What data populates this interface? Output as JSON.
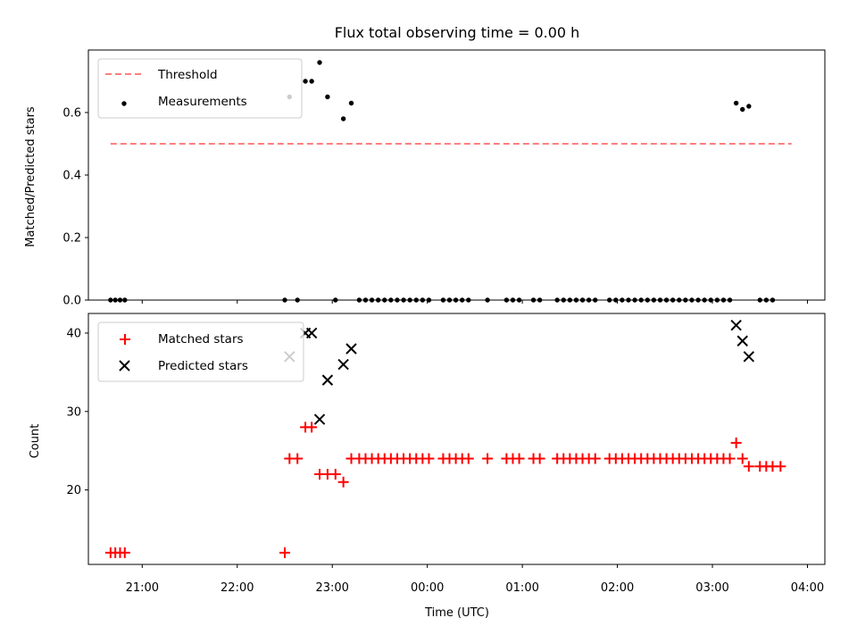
{
  "chart_data": [
    {
      "type": "scatter",
      "title": "Flux total observing time = 0.00 h",
      "xlabel": "",
      "ylabel": "Matched/Predicted stars",
      "xlim": [
        "20:26",
        "04:11"
      ],
      "ylim": [
        0,
        0.8
      ],
      "yticks": [
        {
          "value": 0.0,
          "label": "0.0"
        },
        {
          "value": 0.2,
          "label": "0.2"
        },
        {
          "value": 0.4,
          "label": "0.4"
        },
        {
          "value": 0.6,
          "label": "0.6"
        }
      ],
      "grid": false,
      "legend_position": "upper-left",
      "legend": [
        {
          "label": "Threshold",
          "marker": "dashed-line",
          "color": "#ff7f7f"
        },
        {
          "label": "Measurements",
          "marker": "dot",
          "color": "#000000"
        }
      ],
      "threshold": {
        "name": "Threshold",
        "value": 0.5,
        "x_range": [
          "20:40",
          "03:50"
        ],
        "color": "#ff7f7f",
        "style": "dashed"
      },
      "series": [
        {
          "name": "Measurements",
          "marker": "dot",
          "color": "#000000",
          "points": [
            {
              "x": "20:40",
              "y": 0
            },
            {
              "x": "20:43",
              "y": 0
            },
            {
              "x": "20:46",
              "y": 0
            },
            {
              "x": "20:49",
              "y": 0
            },
            {
              "x": "22:30",
              "y": 0
            },
            {
              "x": "22:33",
              "y": 0.65
            },
            {
              "x": "22:38",
              "y": 0
            },
            {
              "x": "22:43",
              "y": 0.7
            },
            {
              "x": "22:47",
              "y": 0.7
            },
            {
              "x": "22:52",
              "y": 0.76
            },
            {
              "x": "22:57",
              "y": 0.65
            },
            {
              "x": "23:02",
              "y": 0
            },
            {
              "x": "23:07",
              "y": 0.58
            },
            {
              "x": "23:12",
              "y": 0.63
            },
            {
              "x": "23:17",
              "y": 0
            },
            {
              "x": "23:21",
              "y": 0
            },
            {
              "x": "23:25",
              "y": 0
            },
            {
              "x": "23:29",
              "y": 0
            },
            {
              "x": "23:33",
              "y": 0
            },
            {
              "x": "23:37",
              "y": 0
            },
            {
              "x": "23:41",
              "y": 0
            },
            {
              "x": "23:45",
              "y": 0
            },
            {
              "x": "23:49",
              "y": 0
            },
            {
              "x": "23:53",
              "y": 0
            },
            {
              "x": "23:57",
              "y": 0
            },
            {
              "x": "00:01",
              "y": 0
            },
            {
              "x": "00:10",
              "y": 0
            },
            {
              "x": "00:14",
              "y": 0
            },
            {
              "x": "00:18",
              "y": 0
            },
            {
              "x": "00:22",
              "y": 0
            },
            {
              "x": "00:26",
              "y": 0
            },
            {
              "x": "00:38",
              "y": 0
            },
            {
              "x": "00:50",
              "y": 0
            },
            {
              "x": "00:54",
              "y": 0
            },
            {
              "x": "00:58",
              "y": 0
            },
            {
              "x": "01:07",
              "y": 0
            },
            {
              "x": "01:11",
              "y": 0
            },
            {
              "x": "01:22",
              "y": 0
            },
            {
              "x": "01:26",
              "y": 0
            },
            {
              "x": "01:30",
              "y": 0
            },
            {
              "x": "01:34",
              "y": 0
            },
            {
              "x": "01:38",
              "y": 0
            },
            {
              "x": "01:42",
              "y": 0
            },
            {
              "x": "01:46",
              "y": 0
            },
            {
              "x": "01:55",
              "y": 0
            },
            {
              "x": "01:59",
              "y": 0
            },
            {
              "x": "02:03",
              "y": 0
            },
            {
              "x": "02:07",
              "y": 0
            },
            {
              "x": "02:11",
              "y": 0
            },
            {
              "x": "02:15",
              "y": 0
            },
            {
              "x": "02:19",
              "y": 0
            },
            {
              "x": "02:23",
              "y": 0
            },
            {
              "x": "02:27",
              "y": 0
            },
            {
              "x": "02:31",
              "y": 0
            },
            {
              "x": "02:35",
              "y": 0
            },
            {
              "x": "02:39",
              "y": 0
            },
            {
              "x": "02:43",
              "y": 0
            },
            {
              "x": "02:47",
              "y": 0
            },
            {
              "x": "02:51",
              "y": 0
            },
            {
              "x": "02:55",
              "y": 0
            },
            {
              "x": "02:59",
              "y": 0
            },
            {
              "x": "03:03",
              "y": 0
            },
            {
              "x": "03:07",
              "y": 0
            },
            {
              "x": "03:11",
              "y": 0
            },
            {
              "x": "03:15",
              "y": 0.63
            },
            {
              "x": "03:19",
              "y": 0.61
            },
            {
              "x": "03:23",
              "y": 0.62
            },
            {
              "x": "03:30",
              "y": 0
            },
            {
              "x": "03:34",
              "y": 0
            },
            {
              "x": "03:38",
              "y": 0
            }
          ]
        }
      ]
    },
    {
      "type": "scatter",
      "title": "",
      "xlabel": "Time (UTC)",
      "ylabel": "Count",
      "xlim": [
        "20:26",
        "04:11"
      ],
      "ylim": [
        10.5,
        42.5
      ],
      "yticks": [
        {
          "value": 20,
          "label": "20"
        },
        {
          "value": 30,
          "label": "30"
        },
        {
          "value": 40,
          "label": "40"
        }
      ],
      "xticks": [
        {
          "value": "21:00",
          "label": "21:00"
        },
        {
          "value": "22:00",
          "label": "22:00"
        },
        {
          "value": "23:00",
          "label": "23:00"
        },
        {
          "value": "00:00",
          "label": "00:00"
        },
        {
          "value": "01:00",
          "label": "01:00"
        },
        {
          "value": "02:00",
          "label": "02:00"
        },
        {
          "value": "03:00",
          "label": "03:00"
        },
        {
          "value": "04:00",
          "label": "04:00"
        }
      ],
      "grid": false,
      "legend_position": "upper-left",
      "legend": [
        {
          "label": "Matched stars",
          "marker": "plus",
          "color": "#ff0000"
        },
        {
          "label": "Predicted stars",
          "marker": "x",
          "color": "#000000"
        }
      ],
      "series": [
        {
          "name": "Matched stars",
          "marker": "plus",
          "color": "#ff0000",
          "points": [
            {
              "x": "20:40",
              "y": 12
            },
            {
              "x": "20:43",
              "y": 12
            },
            {
              "x": "20:46",
              "y": 12
            },
            {
              "x": "20:49",
              "y": 12
            },
            {
              "x": "22:30",
              "y": 12
            },
            {
              "x": "22:33",
              "y": 24
            },
            {
              "x": "22:38",
              "y": 24
            },
            {
              "x": "22:43",
              "y": 28
            },
            {
              "x": "22:47",
              "y": 28
            },
            {
              "x": "22:52",
              "y": 22
            },
            {
              "x": "22:57",
              "y": 22
            },
            {
              "x": "23:02",
              "y": 22
            },
            {
              "x": "23:07",
              "y": 21
            },
            {
              "x": "23:12",
              "y": 24
            },
            {
              "x": "23:17",
              "y": 24
            },
            {
              "x": "23:21",
              "y": 24
            },
            {
              "x": "23:25",
              "y": 24
            },
            {
              "x": "23:29",
              "y": 24
            },
            {
              "x": "23:33",
              "y": 24
            },
            {
              "x": "23:37",
              "y": 24
            },
            {
              "x": "23:41",
              "y": 24
            },
            {
              "x": "23:45",
              "y": 24
            },
            {
              "x": "23:49",
              "y": 24
            },
            {
              "x": "23:53",
              "y": 24
            },
            {
              "x": "23:57",
              "y": 24
            },
            {
              "x": "00:01",
              "y": 24
            },
            {
              "x": "00:10",
              "y": 24
            },
            {
              "x": "00:14",
              "y": 24
            },
            {
              "x": "00:18",
              "y": 24
            },
            {
              "x": "00:22",
              "y": 24
            },
            {
              "x": "00:26",
              "y": 24
            },
            {
              "x": "00:38",
              "y": 24
            },
            {
              "x": "00:50",
              "y": 24
            },
            {
              "x": "00:54",
              "y": 24
            },
            {
              "x": "00:58",
              "y": 24
            },
            {
              "x": "01:07",
              "y": 24
            },
            {
              "x": "01:11",
              "y": 24
            },
            {
              "x": "01:22",
              "y": 24
            },
            {
              "x": "01:26",
              "y": 24
            },
            {
              "x": "01:30",
              "y": 24
            },
            {
              "x": "01:34",
              "y": 24
            },
            {
              "x": "01:38",
              "y": 24
            },
            {
              "x": "01:42",
              "y": 24
            },
            {
              "x": "01:46",
              "y": 24
            },
            {
              "x": "01:55",
              "y": 24
            },
            {
              "x": "01:59",
              "y": 24
            },
            {
              "x": "02:03",
              "y": 24
            },
            {
              "x": "02:07",
              "y": 24
            },
            {
              "x": "02:11",
              "y": 24
            },
            {
              "x": "02:15",
              "y": 24
            },
            {
              "x": "02:19",
              "y": 24
            },
            {
              "x": "02:23",
              "y": 24
            },
            {
              "x": "02:27",
              "y": 24
            },
            {
              "x": "02:31",
              "y": 24
            },
            {
              "x": "02:35",
              "y": 24
            },
            {
              "x": "02:39",
              "y": 24
            },
            {
              "x": "02:43",
              "y": 24
            },
            {
              "x": "02:47",
              "y": 24
            },
            {
              "x": "02:51",
              "y": 24
            },
            {
              "x": "02:55",
              "y": 24
            },
            {
              "x": "02:59",
              "y": 24
            },
            {
              "x": "03:03",
              "y": 24
            },
            {
              "x": "03:07",
              "y": 24
            },
            {
              "x": "03:11",
              "y": 24
            },
            {
              "x": "03:15",
              "y": 26
            },
            {
              "x": "03:19",
              "y": 24
            },
            {
              "x": "03:23",
              "y": 23
            },
            {
              "x": "03:30",
              "y": 23
            },
            {
              "x": "03:34",
              "y": 23
            },
            {
              "x": "03:38",
              "y": 23
            },
            {
              "x": "03:43",
              "y": 23
            }
          ]
        },
        {
          "name": "Predicted stars",
          "marker": "x",
          "color": "#000000",
          "points": [
            {
              "x": "22:33",
              "y": 37
            },
            {
              "x": "22:43",
              "y": 40
            },
            {
              "x": "22:47",
              "y": 40
            },
            {
              "x": "22:52",
              "y": 29
            },
            {
              "x": "22:57",
              "y": 34
            },
            {
              "x": "23:07",
              "y": 36
            },
            {
              "x": "23:12",
              "y": 38
            },
            {
              "x": "03:15",
              "y": 41
            },
            {
              "x": "03:19",
              "y": 39
            },
            {
              "x": "03:23",
              "y": 37
            }
          ]
        }
      ]
    }
  ]
}
